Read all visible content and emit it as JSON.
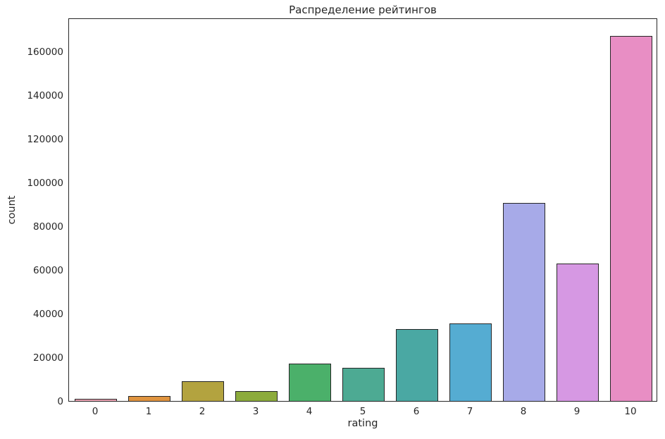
{
  "chart_data": {
    "type": "bar",
    "title": "Распределение рейтингов",
    "xlabel": "rating",
    "ylabel": "count",
    "categories": [
      "0",
      "1",
      "2",
      "3",
      "4",
      "5",
      "6",
      "7",
      "8",
      "9",
      "10"
    ],
    "values": [
      1000,
      2200,
      9000,
      4500,
      17100,
      15200,
      33000,
      35500,
      90500,
      63000,
      167000
    ],
    "colors": [
      "#eca3b4",
      "#e0943f",
      "#b3a33f",
      "#8cab3c",
      "#4bb06a",
      "#4daa93",
      "#4aa8a3",
      "#55acd2",
      "#a7aae8",
      "#d698e3",
      "#e88ec4"
    ],
    "bar_edge_color": "#262626",
    "ylim": [
      0,
      175500
    ],
    "yticks": [
      0,
      20000,
      40000,
      60000,
      80000,
      100000,
      120000,
      140000,
      160000
    ],
    "grid": false,
    "legend": "none",
    "bar_width_fraction": 0.8
  }
}
